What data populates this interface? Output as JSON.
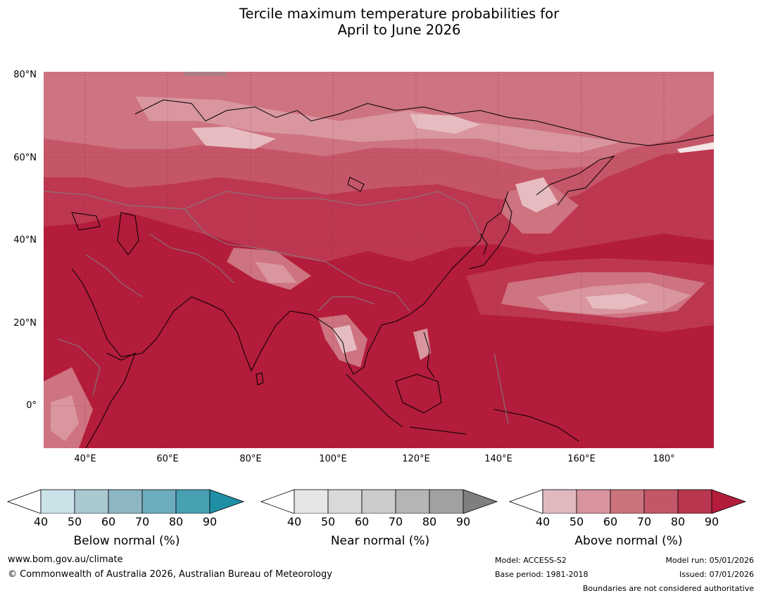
{
  "title": {
    "line1": "Tercile maximum temperature probabilities for",
    "line2": "April to June 2026"
  },
  "map": {
    "lat_labels": [
      "80°N",
      "60°N",
      "40°N",
      "20°N",
      "0°"
    ],
    "lon_labels": [
      "40°E",
      "60°E",
      "80°E",
      "100°E",
      "120°E",
      "140°E",
      "160°E",
      "180°"
    ],
    "extent": {
      "lon": [
        30,
        192
      ],
      "lat": [
        -10,
        81
      ]
    },
    "dominant_category": "Above normal",
    "colors": {
      "above_90": "#b31c3a",
      "above_80": "#bd3750",
      "above_70": "#c55668",
      "above_60": "#ce7380",
      "above_50": "#d9969f",
      "above_40": "#e6bcc1",
      "land_outline": "#000000",
      "border_outline": "#808080"
    }
  },
  "legend": {
    "ticks": [
      "40",
      "50",
      "60",
      "70",
      "80",
      "90"
    ],
    "below": {
      "label": "Below normal (%)",
      "colors": [
        "#ffffff",
        "#cbe2e9",
        "#aac8cf",
        "#8db6c3",
        "#6dacbd",
        "#48a0b3",
        "#1f8fa6"
      ]
    },
    "near": {
      "label": "Near normal (%)",
      "colors": [
        "#ffffff",
        "#e6e6e6",
        "#d9d9d9",
        "#cbcbcb",
        "#b5b5b5",
        "#a1a1a1",
        "#7f7f7f"
      ]
    },
    "above": {
      "label": "Above normal (%)",
      "colors": [
        "#ffffff",
        "#e0b9bf",
        "#d7949d",
        "#cb737d",
        "#c35767",
        "#b8364e",
        "#b31c3a"
      ]
    }
  },
  "footer": {
    "website": "www.bom.gov.au/climate",
    "copyright": "© Commonwealth of Australia 2026, Australian Bureau of Meteorology",
    "model": "Model: ACCESS-S2",
    "base_period": "Base period: 1981-2018",
    "model_run": "Model run: 05/01/2026",
    "issued": "Issued: 07/01/2026",
    "disclaimer": "Boundaries are not considered authoritative"
  }
}
